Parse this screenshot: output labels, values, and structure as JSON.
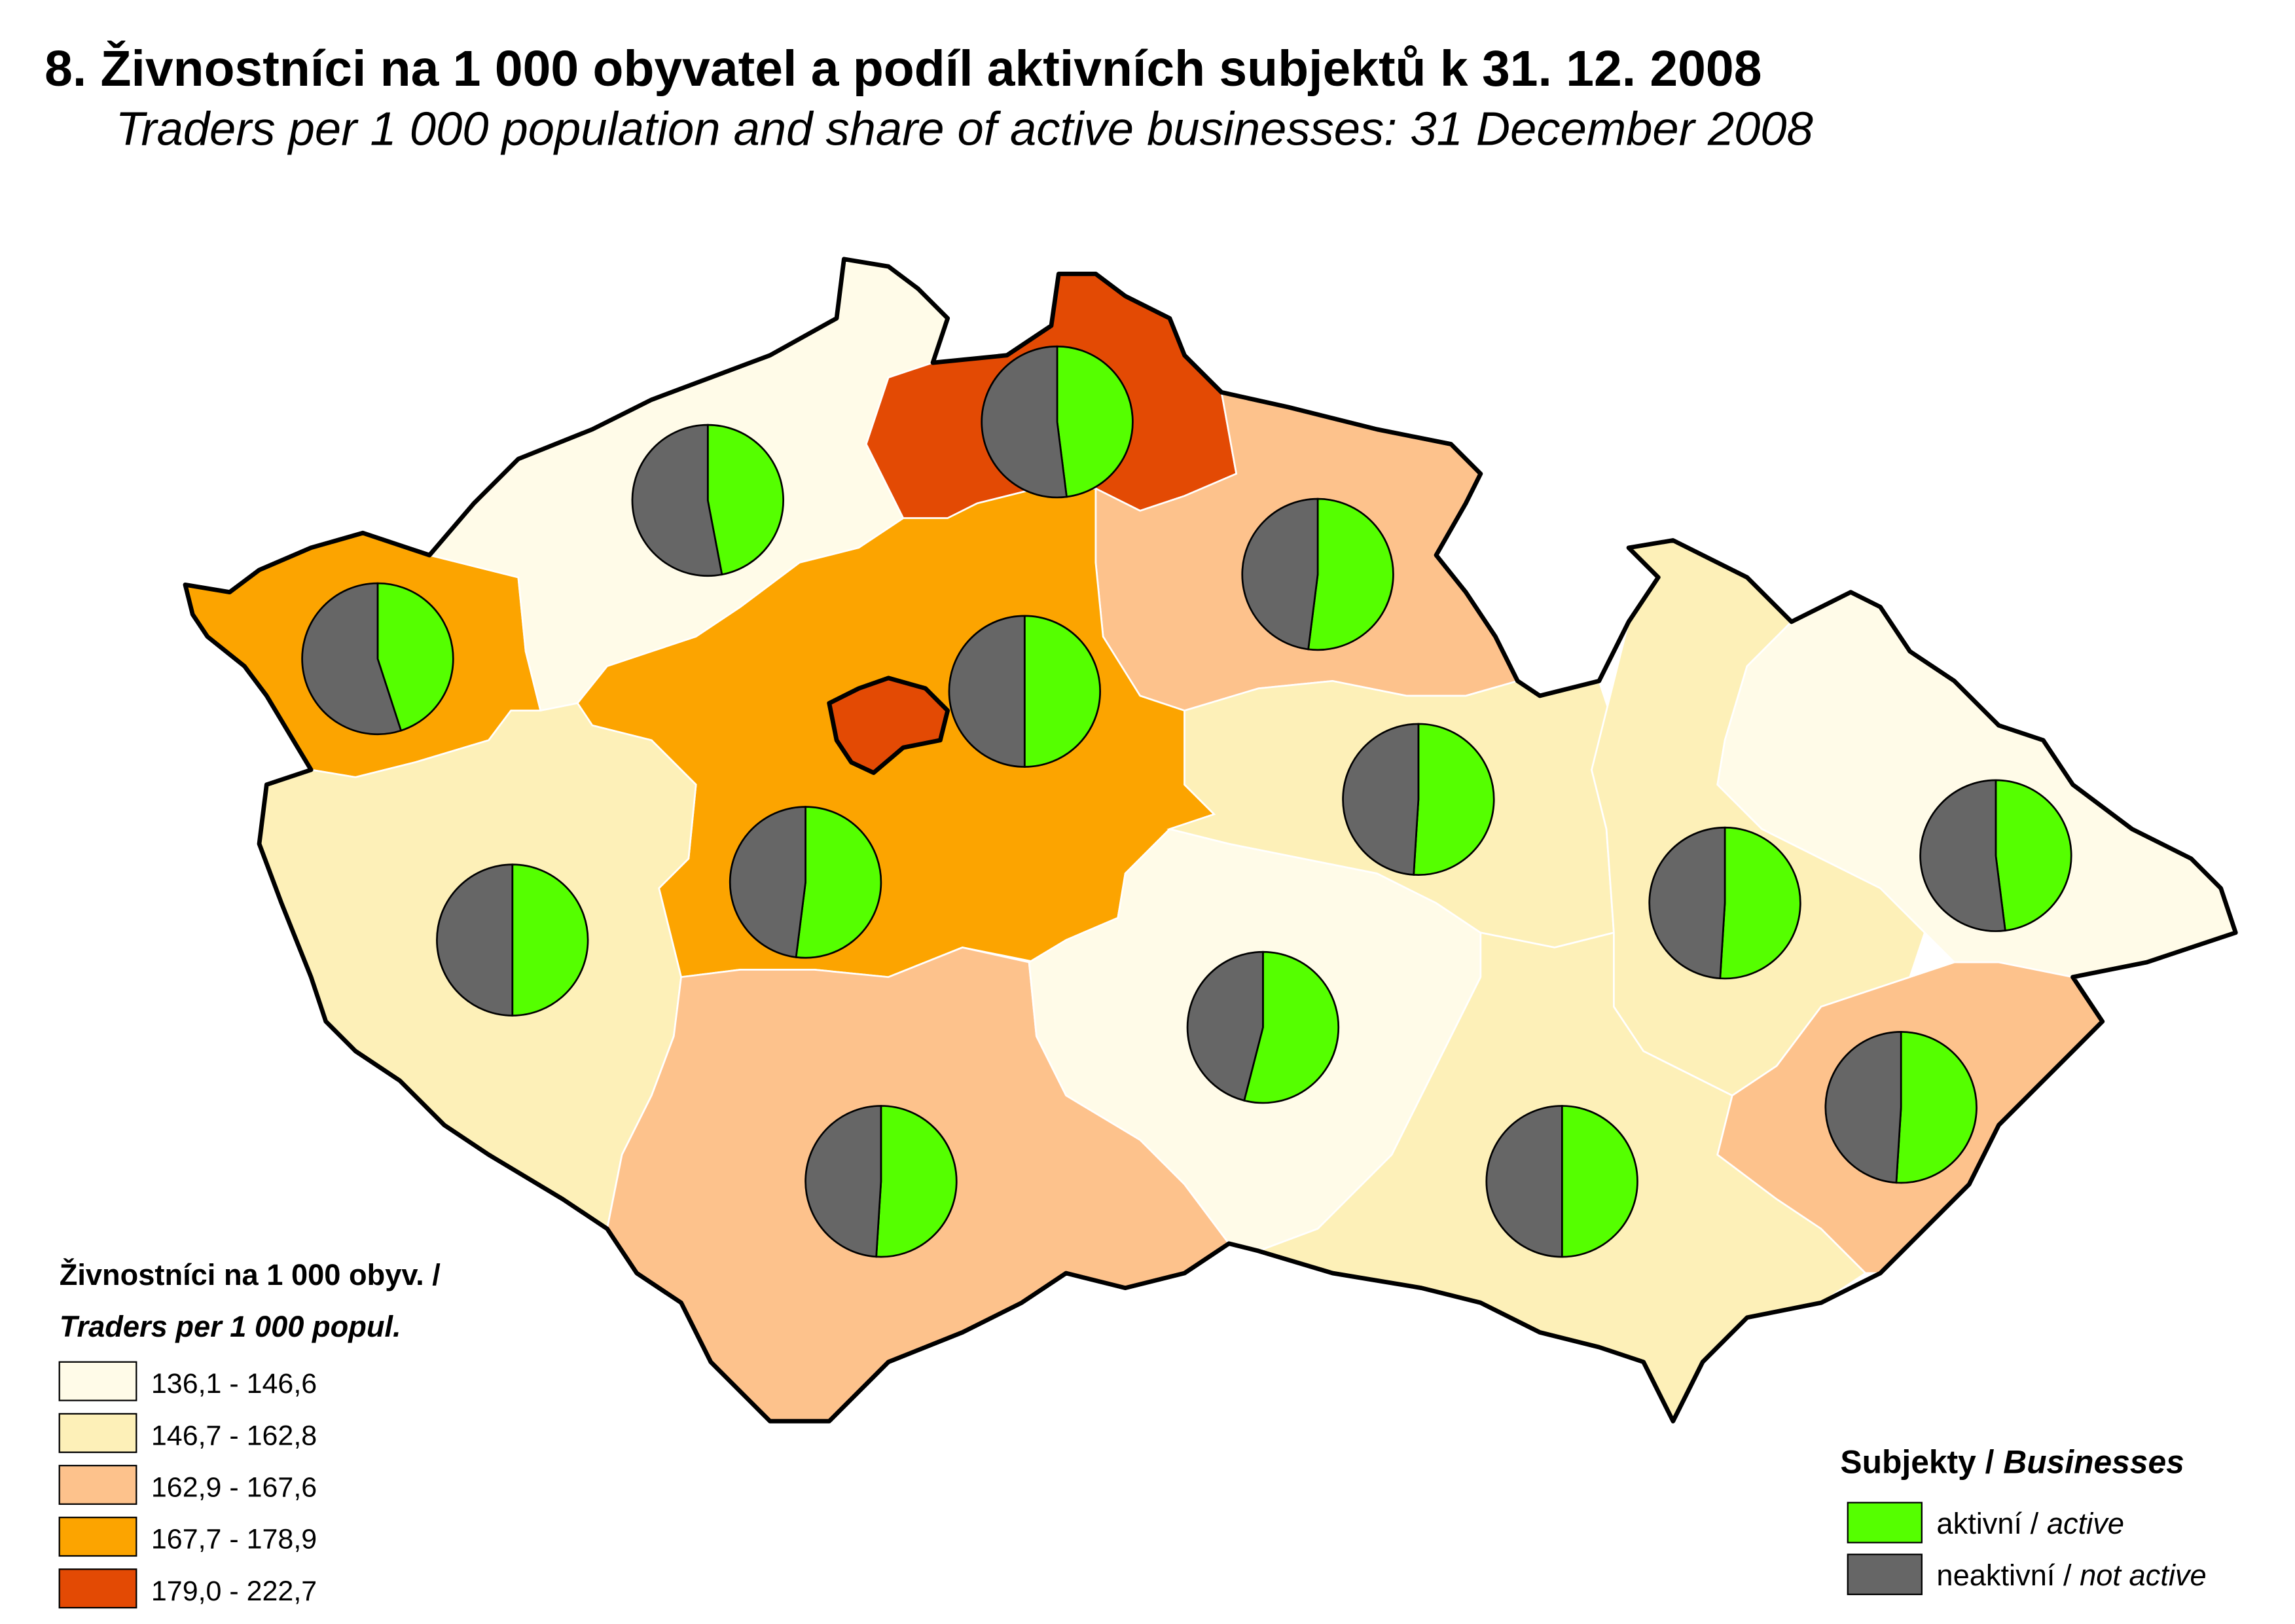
{
  "title": "8. Živnostníci na 1 000 obyvatel a podíl aktivních subjektů k 31. 12. 2008",
  "subtitle": "Traders per 1 000 population and share of active businesses: 31 December 2008",
  "legend": {
    "title_line1": "Živnostníci na 1 000 obyv. /",
    "title_line2": "Traders per 1 000 popul.",
    "classes": [
      {
        "label": "136,1 - 146,6",
        "color": "#fffbe8"
      },
      {
        "label": "146,7 - 162,8",
        "color": "#fdf0b8"
      },
      {
        "label": "162,9 - 167,6",
        "color": "#fdc28c"
      },
      {
        "label": "167,7 - 178,9",
        "color": "#fca400"
      },
      {
        "label": "179,0 - 222,7",
        "color": "#e34a04"
      }
    ]
  },
  "pie_legend": {
    "title_cz": "Subjekty /",
    "title_en": "Businesses",
    "items": [
      {
        "label_cz": "aktivní /",
        "label_en": "active",
        "color": "#55ff00"
      },
      {
        "label_cz": "neaktivní /",
        "label_en": "not active",
        "color": "#666666"
      }
    ]
  },
  "regions": [
    {
      "class": 3,
      "active_share": 45
    },
    {
      "class": 0,
      "active_share": 47
    },
    {
      "class": 4,
      "active_share": 48
    },
    {
      "class": 2,
      "active_share": 52
    },
    {
      "class": 3,
      "active_share": 50
    },
    {
      "class": 4,
      "active_share": 52
    },
    {
      "class": 1,
      "active_share": 50
    },
    {
      "class": 2,
      "active_share": 51
    },
    {
      "class": 0,
      "active_share": 54
    },
    {
      "class": 1,
      "active_share": 51
    },
    {
      "class": 1,
      "active_share": 50
    },
    {
      "class": 1,
      "active_share": 51
    },
    {
      "class": 0,
      "active_share": 48
    },
    {
      "class": 2,
      "active_share": 51
    }
  ]
}
